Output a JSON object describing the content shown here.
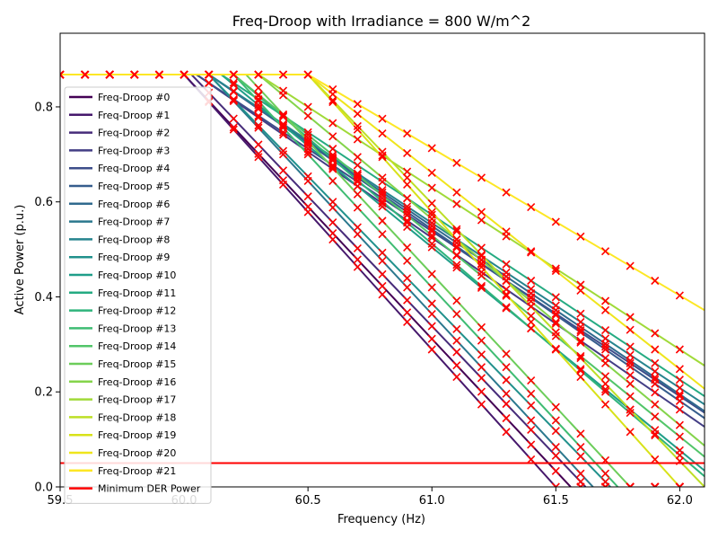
{
  "chart_data": {
    "type": "line",
    "title": "Freq-Droop with Irradiance = 800 W/m^2",
    "xlabel": "Frequency (Hz)",
    "ylabel": "Active Power (p.u.)",
    "xlim": [
      59.5,
      62.1
    ],
    "ylim": [
      0.0,
      0.955
    ],
    "x_ticks": [
      59.5,
      60.0,
      60.5,
      61.0,
      61.5,
      62.0
    ],
    "x_tick_labels": [
      "59.5",
      "60.0",
      "60.5",
      "61.0",
      "61.5",
      "62.0"
    ],
    "y_ticks": [
      0.0,
      0.2,
      0.4,
      0.6,
      0.8
    ],
    "y_tick_labels": [
      "0.0",
      "0.2",
      "0.4",
      "0.6",
      "0.8"
    ],
    "legend_position": "lower-left",
    "p_max": 0.868,
    "sample_frequencies": [
      59.5,
      59.6,
      59.7,
      59.8,
      59.9,
      60.0,
      60.1,
      60.2,
      60.3,
      60.4,
      60.5,
      60.6,
      60.7,
      60.8,
      60.9,
      61.0,
      61.1,
      61.2,
      61.3,
      61.4,
      61.5,
      61.6,
      61.7,
      61.8,
      61.9,
      62.0
    ],
    "marker_color": "#ff0000",
    "series": [
      {
        "name": "Freq-Droop #0",
        "color": "#440154",
        "knee_x": 60.0,
        "end_x": 61.56
      },
      {
        "name": "Freq-Droop #1",
        "color": "#46186c",
        "knee_x": 60.0,
        "end_x": 61.5
      },
      {
        "name": "Freq-Droop #2",
        "color": "#472c7a",
        "knee_x": 60.03,
        "end_x": 61.62
      },
      {
        "name": "Freq-Droop #3",
        "color": "#433e85",
        "knee_x": 60.05,
        "end_x": 62.45
      },
      {
        "name": "Freq-Droop #4",
        "color": "#3d4e8a",
        "knee_x": 60.05,
        "end_x": 62.55
      },
      {
        "name": "Freq-Droop #5",
        "color": "#365d8d",
        "knee_x": 60.1,
        "end_x": 62.5
      },
      {
        "name": "Freq-Droop #6",
        "color": "#306a8e",
        "knee_x": 60.1,
        "end_x": 62.55
      },
      {
        "name": "Freq-Droop #7",
        "color": "#2b788e",
        "knee_x": 60.1,
        "end_x": 61.65
      },
      {
        "name": "Freq-Droop #8",
        "color": "#26848e",
        "knee_x": 60.1,
        "end_x": 62.6
      },
      {
        "name": "Freq-Droop #9",
        "color": "#21918c",
        "knee_x": 60.1,
        "end_x": 61.72
      },
      {
        "name": "Freq-Droop #10",
        "color": "#1f9e89",
        "knee_x": 60.15,
        "end_x": 62.18
      },
      {
        "name": "Freq-Droop #11",
        "color": "#25ab82",
        "knee_x": 60.15,
        "end_x": 62.65
      },
      {
        "name": "Freq-Droop #12",
        "color": "#2fb47c",
        "knee_x": 60.2,
        "end_x": 62.15
      },
      {
        "name": "Freq-Droop #13",
        "color": "#3fbc73",
        "knee_x": 60.2,
        "end_x": 61.75
      },
      {
        "name": "Freq-Droop #14",
        "color": "#52c569",
        "knee_x": 60.2,
        "end_x": 62.25
      },
      {
        "name": "Freq-Droop #15",
        "color": "#6ccd5a",
        "knee_x": 60.25,
        "end_x": 61.8
      },
      {
        "name": "Freq-Droop #16",
        "color": "#84d44b",
        "knee_x": 60.3,
        "end_x": 62.3
      },
      {
        "name": "Freq-Droop #17",
        "color": "#a0da39",
        "knee_x": 60.3,
        "end_x": 62.85
      },
      {
        "name": "Freq-Droop #18",
        "color": "#bddf26",
        "knee_x": 60.5,
        "end_x": 62.1
      },
      {
        "name": "Freq-Droop #19",
        "color": "#d8e219",
        "knee_x": 60.5,
        "end_x": 62.0
      },
      {
        "name": "Freq-Droop #20",
        "color": "#efe51c",
        "knee_x": 60.5,
        "end_x": 62.6
      },
      {
        "name": "Freq-Droop #21",
        "color": "#fde725",
        "knee_x": 60.5,
        "end_x": 63.3
      }
    ],
    "reference_line": {
      "name": "Minimum DER Power",
      "y": 0.05,
      "color": "#ff0000"
    }
  }
}
